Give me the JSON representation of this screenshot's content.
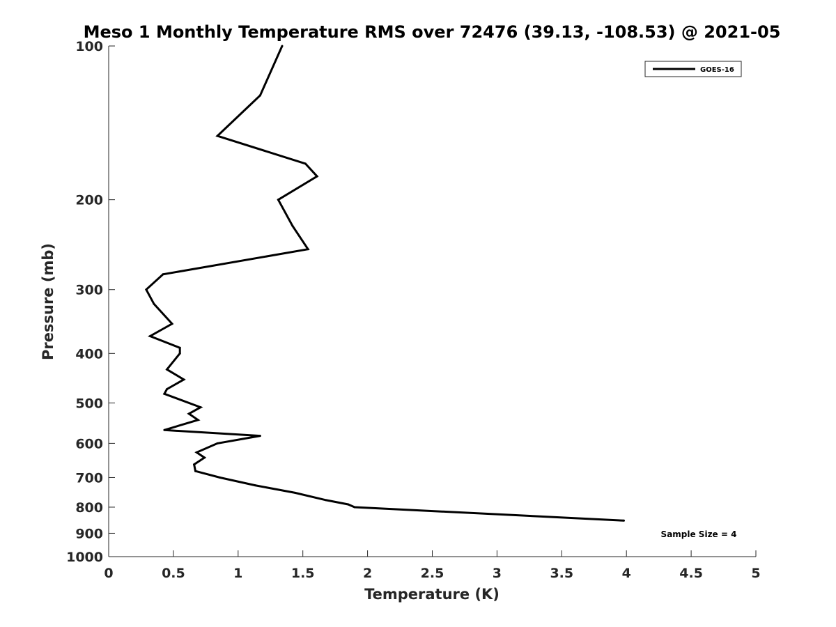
{
  "chart_data": {
    "type": "line",
    "title": "Meso 1 Monthly Temperature RMS over 72476 (39.13, -108.53) @ 2021-05",
    "xlabel": "Temperature (K)",
    "ylabel": "Pressure (mb)",
    "xlim": [
      0,
      5
    ],
    "ylim": [
      100,
      1000
    ],
    "y_scale": "log",
    "y_reversed": true,
    "x_ticks": [
      "0",
      "0.5",
      "1",
      "1.5",
      "2",
      "2.5",
      "3",
      "3.5",
      "4",
      "4.5",
      "5"
    ],
    "y_ticks": [
      "100",
      "200",
      "300",
      "400",
      "500",
      "600",
      "700",
      "800",
      "900",
      "1000"
    ],
    "grid": false,
    "legend_position": "top-right",
    "annotation": "Sample Size = 4",
    "series": [
      {
        "name": "GOES-16",
        "color": "#000000",
        "points": [
          {
            "x": 1.34,
            "y": 100
          },
          {
            "x": 1.17,
            "y": 125
          },
          {
            "x": 0.84,
            "y": 150
          },
          {
            "x": 1.52,
            "y": 170
          },
          {
            "x": 1.61,
            "y": 180
          },
          {
            "x": 1.31,
            "y": 200
          },
          {
            "x": 1.42,
            "y": 225
          },
          {
            "x": 1.54,
            "y": 250
          },
          {
            "x": 0.42,
            "y": 280
          },
          {
            "x": 0.29,
            "y": 300
          },
          {
            "x": 0.35,
            "y": 320
          },
          {
            "x": 0.49,
            "y": 350
          },
          {
            "x": 0.32,
            "y": 370
          },
          {
            "x": 0.55,
            "y": 390
          },
          {
            "x": 0.55,
            "y": 400
          },
          {
            "x": 0.45,
            "y": 430
          },
          {
            "x": 0.58,
            "y": 450
          },
          {
            "x": 0.45,
            "y": 470
          },
          {
            "x": 0.43,
            "y": 480
          },
          {
            "x": 0.71,
            "y": 510
          },
          {
            "x": 0.62,
            "y": 525
          },
          {
            "x": 0.69,
            "y": 540
          },
          {
            "x": 0.43,
            "y": 565
          },
          {
            "x": 1.17,
            "y": 580
          },
          {
            "x": 0.84,
            "y": 600
          },
          {
            "x": 0.68,
            "y": 625
          },
          {
            "x": 0.74,
            "y": 640
          },
          {
            "x": 0.66,
            "y": 660
          },
          {
            "x": 0.67,
            "y": 680
          },
          {
            "x": 0.86,
            "y": 700
          },
          {
            "x": 1.13,
            "y": 725
          },
          {
            "x": 1.44,
            "y": 750
          },
          {
            "x": 1.68,
            "y": 775
          },
          {
            "x": 1.85,
            "y": 790
          },
          {
            "x": 1.9,
            "y": 800
          },
          {
            "x": 3.98,
            "y": 850
          }
        ]
      }
    ]
  }
}
